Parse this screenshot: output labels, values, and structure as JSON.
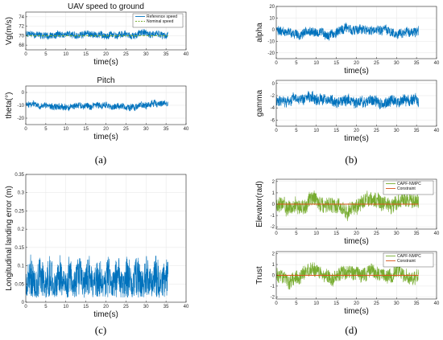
{
  "colors": {
    "blue": "#0072bd",
    "green": "#77ac30",
    "red": "#d95319",
    "axis": "#262626"
  },
  "chart_data": [
    {
      "id": "a1",
      "panel": "a",
      "type": "line",
      "title": "UAV speed to ground",
      "xlabel": "time(s)",
      "ylabel": "Vg(m/s)",
      "xlim": [
        0,
        40
      ],
      "ylim": [
        67,
        75
      ],
      "xticks": [
        0,
        5,
        10,
        15,
        20,
        25,
        30,
        35,
        40
      ],
      "yticks": [
        68,
        70,
        72,
        74
      ],
      "legend": "top-right",
      "series": [
        {
          "name": "Reference speed",
          "color": "#0072bd",
          "style": "solid",
          "x_end": 35.5,
          "kind": "noise",
          "mean": 70.3,
          "amp": 1.4,
          "seed": 11
        },
        {
          "name": "Nominal speed",
          "color": "#77ac30",
          "style": "dashed",
          "x_end": 35.5,
          "kind": "constant",
          "value": 70
        }
      ]
    },
    {
      "id": "a2",
      "panel": "a",
      "type": "line",
      "title": "Pitch",
      "xlabel": "time(s)",
      "ylabel": "theta(°)",
      "xlim": [
        0,
        40
      ],
      "ylim": [
        -25,
        5
      ],
      "xticks": [
        0,
        5,
        10,
        15,
        20,
        25,
        30,
        35,
        40
      ],
      "yticks": [
        -20,
        -10,
        0
      ],
      "series": [
        {
          "color": "#0072bd",
          "style": "solid",
          "x_end": 35.5,
          "kind": "noise",
          "mean": -10,
          "amp": 5,
          "seed": 23
        }
      ]
    },
    {
      "id": "b1",
      "panel": "b",
      "type": "line",
      "title": "",
      "xlabel": "time(s)",
      "ylabel": "alpha",
      "xlim": [
        0,
        40
      ],
      "ylim": [
        -25,
        20
      ],
      "xticks": [
        0,
        5,
        10,
        15,
        20,
        25,
        30,
        35,
        40
      ],
      "yticks": [
        -20,
        -10,
        0,
        10,
        20
      ],
      "series": [
        {
          "color": "#0072bd",
          "style": "solid",
          "x_end": 35.5,
          "kind": "noise",
          "mean": -2,
          "amp": 8,
          "seed": 37
        }
      ]
    },
    {
      "id": "b2",
      "panel": "b",
      "type": "line",
      "title": "",
      "xlabel": "time(s)",
      "ylabel": "gamma",
      "xlim": [
        0,
        40
      ],
      "ylim": [
        -7,
        0.5
      ],
      "xticks": [
        0,
        5,
        10,
        15,
        20,
        25,
        30,
        35,
        40
      ],
      "yticks": [
        -6,
        -4,
        -2,
        0
      ],
      "series": [
        {
          "color": "#0072bd",
          "style": "solid",
          "x_end": 35.5,
          "kind": "noise",
          "mean": -3,
          "amp": 1.8,
          "seed": 41
        }
      ]
    },
    {
      "id": "c1",
      "panel": "c",
      "type": "line",
      "title": "",
      "xlabel": "time(s)",
      "ylabel": "Longitudinal landing error (m)",
      "xlim": [
        0,
        40
      ],
      "ylim": [
        0,
        0.35
      ],
      "xticks": [
        0,
        5,
        10,
        15,
        20,
        25,
        30,
        35,
        40
      ],
      "yticks": [
        0,
        0.05,
        0.1,
        0.15,
        0.2,
        0.25,
        0.3,
        0.35
      ],
      "series": [
        {
          "color": "#0072bd",
          "style": "solid",
          "x_end": 35.5,
          "kind": "abs",
          "mean": 0.08,
          "amp": 0.12,
          "seed": 53
        }
      ]
    },
    {
      "id": "d1",
      "panel": "d",
      "type": "line",
      "title": "",
      "xlabel": "time(s)",
      "ylabel": "Elevator(rad)",
      "xlim": [
        0,
        40
      ],
      "ylim": [
        -2.2,
        2.2
      ],
      "xticks": [
        0,
        5,
        10,
        15,
        20,
        25,
        30,
        35,
        40
      ],
      "yticks": [
        -2,
        -1,
        0,
        1,
        2
      ],
      "legend": "top-right",
      "series": [
        {
          "name": "CAPF-NMPC",
          "color": "#77ac30",
          "style": "solid",
          "x_end": 35.5,
          "kind": "noise",
          "mean": 0,
          "amp": 1.3,
          "seed": 67
        },
        {
          "name": "Constraint",
          "color": "#d95319",
          "style": "solid",
          "x_end": 35.5,
          "kind": "constant",
          "value": 0
        }
      ]
    },
    {
      "id": "d2",
      "panel": "d",
      "type": "line",
      "title": "",
      "xlabel": "time(s)",
      "ylabel": "Trust",
      "xlim": [
        0,
        40
      ],
      "ylim": [
        -2.2,
        2.2
      ],
      "xticks": [
        0,
        5,
        10,
        15,
        20,
        25,
        30,
        35,
        40
      ],
      "yticks": [
        -2,
        -1,
        0,
        1,
        2
      ],
      "legend": "top-right",
      "series": [
        {
          "name": "CAPF-NMPC",
          "color": "#77ac30",
          "style": "solid",
          "x_end": 35.5,
          "kind": "noise",
          "mean": 0,
          "amp": 1.3,
          "seed": 79
        },
        {
          "name": "Constraint",
          "color": "#d95319",
          "style": "solid",
          "x_end": 35.5,
          "kind": "constant",
          "value": 0
        }
      ]
    }
  ],
  "panel_labels": {
    "a": "(a)",
    "b": "(b)",
    "c": "(c)",
    "d": "(d)"
  }
}
